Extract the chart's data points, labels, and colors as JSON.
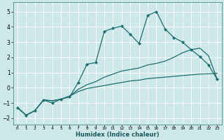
{
  "xlabel": "Humidex (Indice chaleur)",
  "bg_color": "#cde8e8",
  "grid_color": "#b0d8d8",
  "line_color": "#1a6e6e",
  "xlim": [
    -0.5,
    23.5
  ],
  "ylim": [
    -2.4,
    5.6
  ],
  "yticks": [
    -2,
    -1,
    0,
    1,
    2,
    3,
    4,
    5
  ],
  "xticks": [
    0,
    1,
    2,
    3,
    4,
    5,
    6,
    7,
    8,
    9,
    10,
    11,
    12,
    13,
    14,
    15,
    16,
    17,
    18,
    19,
    20,
    21,
    22,
    23
  ],
  "line1_x": [
    0,
    1,
    2,
    3,
    4,
    5,
    6,
    7,
    8,
    9,
    10,
    11,
    12,
    13,
    14,
    15,
    16,
    17,
    18,
    19,
    20,
    21,
    22,
    23
  ],
  "line1_y": [
    -1.3,
    -1.8,
    -1.5,
    -0.8,
    -1.0,
    -0.75,
    -0.6,
    0.35,
    1.55,
    1.65,
    3.7,
    3.9,
    4.05,
    3.5,
    2.9,
    4.75,
    5.0,
    3.85,
    3.3,
    3.0,
    2.5,
    2.05,
    1.5,
    0.55
  ],
  "line2_x": [
    0,
    1,
    2,
    3,
    4,
    5,
    6,
    7,
    8,
    9,
    10,
    11,
    12,
    13,
    14,
    15,
    16,
    17,
    18,
    19,
    20,
    21,
    22,
    23
  ],
  "line2_y": [
    -1.3,
    -1.8,
    -1.5,
    -0.8,
    -0.85,
    -0.75,
    -0.55,
    -0.25,
    -0.05,
    0.05,
    0.15,
    0.25,
    0.35,
    0.45,
    0.5,
    0.6,
    0.65,
    0.7,
    0.75,
    0.8,
    0.85,
    0.9,
    0.92,
    0.95
  ],
  "line3_x": [
    0,
    1,
    2,
    3,
    4,
    5,
    6,
    7,
    8,
    9,
    10,
    11,
    12,
    13,
    14,
    15,
    16,
    17,
    18,
    19,
    20,
    21,
    22,
    23
  ],
  "line3_y": [
    -1.3,
    -1.8,
    -1.5,
    -0.8,
    -0.85,
    -0.75,
    -0.55,
    -0.1,
    0.2,
    0.4,
    0.7,
    0.9,
    1.1,
    1.2,
    1.3,
    1.5,
    1.6,
    1.75,
    2.0,
    2.3,
    2.5,
    2.6,
    2.1,
    0.55
  ]
}
